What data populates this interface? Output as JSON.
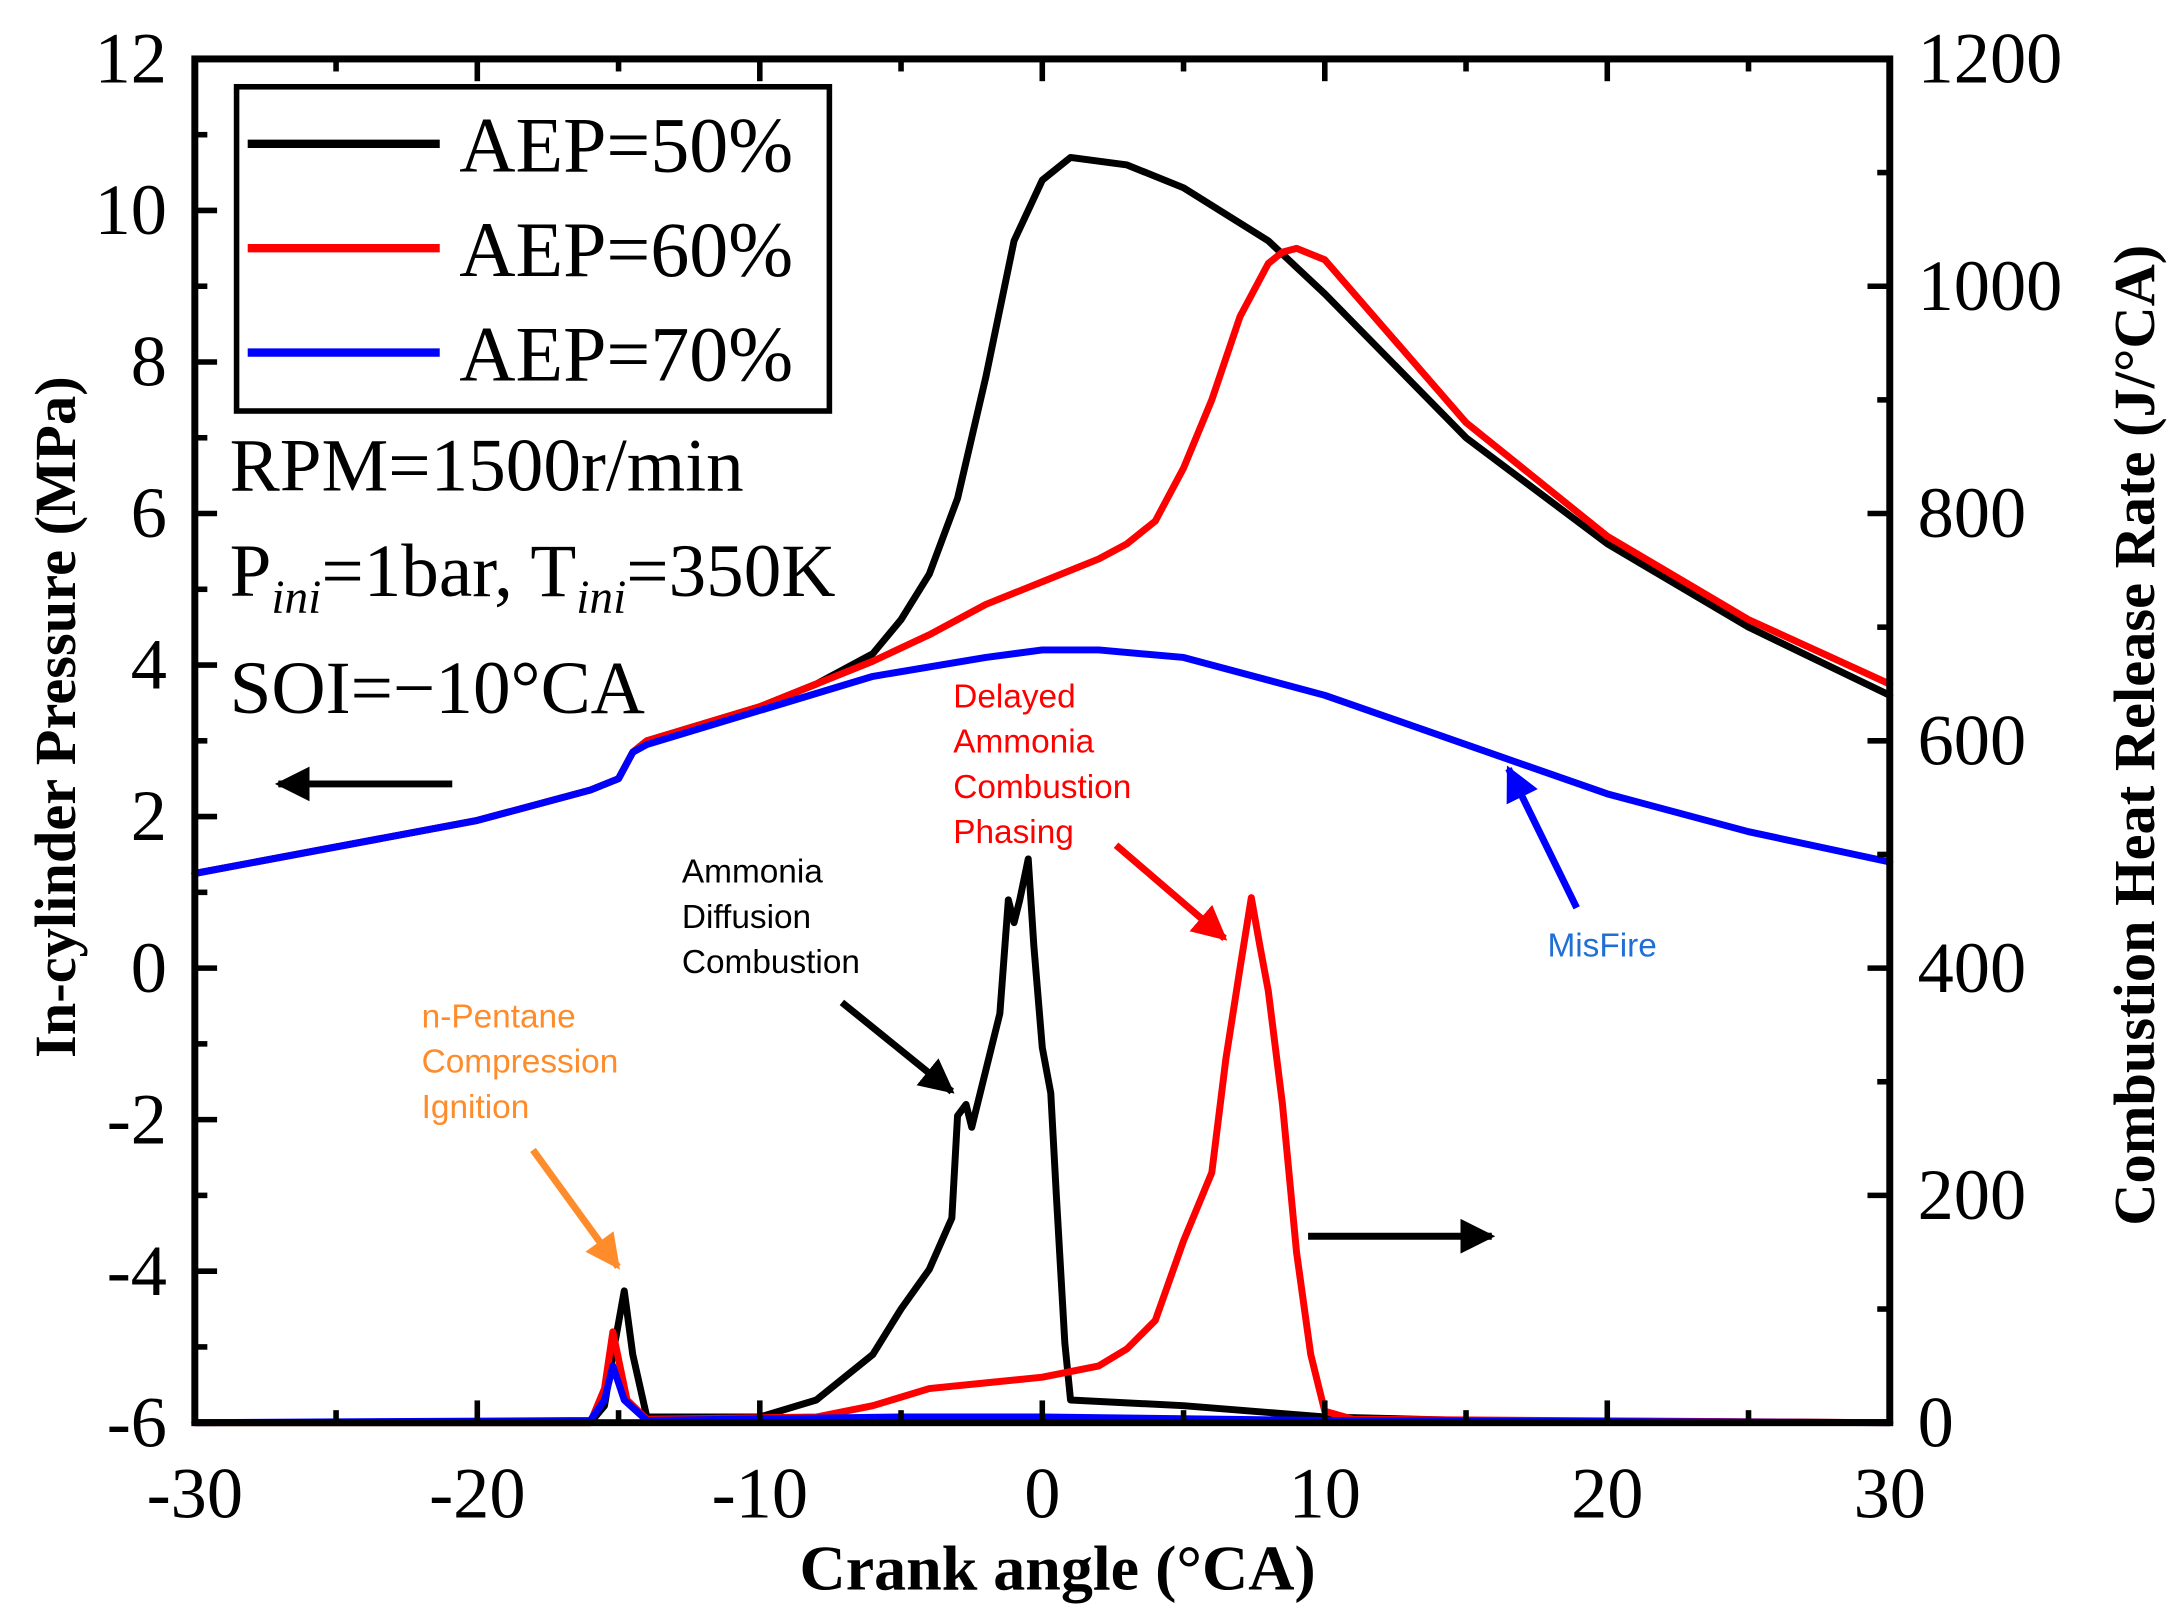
{
  "chart_data": {
    "type": "line",
    "xlabel": "Crank angle  (°CA)",
    "ylabel": "In-cylinder Pressure (MPa)",
    "y2label": "Combustion Heat Release Rate (J/°CA)",
    "xlim": [
      -30,
      30
    ],
    "ylim": [
      -6,
      12
    ],
    "y2lim": [
      0,
      1200
    ],
    "xticks": [
      "-30",
      "-20",
      "-10",
      "0",
      "10",
      "20",
      "30"
    ],
    "yticks": [
      "-6",
      "-4",
      "-2",
      "0",
      "2",
      "4",
      "6",
      "8",
      "10",
      "12"
    ],
    "y2ticks": [
      "0",
      "200",
      "400",
      "600",
      "800",
      "1000",
      "1200"
    ],
    "grid": false,
    "legend_position": "top-left",
    "legend": [
      "AEP=50%",
      "AEP=60%",
      "AEP=70%"
    ],
    "colors": {
      "AEP=50%": "#000000",
      "AEP=60%": "#ff0000",
      "AEP=70%": "#0000ff"
    },
    "series": [
      {
        "name": "AEP=50%",
        "axis": "left",
        "quantity": "pressure",
        "x": [
          -30,
          -20,
          -16,
          -15,
          -14.5,
          -14,
          -10,
          -8,
          -6,
          -5,
          -4,
          -3,
          -2,
          -1,
          0,
          1,
          3,
          5,
          8,
          10,
          15,
          20,
          25,
          30
        ],
        "y": [
          1.25,
          1.95,
          2.35,
          2.5,
          2.85,
          3.0,
          3.45,
          3.75,
          4.15,
          4.6,
          5.2,
          6.2,
          7.8,
          9.6,
          10.4,
          10.7,
          10.6,
          10.3,
          9.6,
          8.9,
          7.0,
          5.6,
          4.5,
          3.6
        ]
      },
      {
        "name": "AEP=60%",
        "axis": "left",
        "quantity": "pressure",
        "x": [
          -30,
          -20,
          -16,
          -15,
          -14.5,
          -14,
          -10,
          -8,
          -6,
          -4,
          -2,
          0,
          2,
          3,
          4,
          5,
          6,
          7,
          8,
          8.5,
          9,
          10,
          15,
          20,
          25,
          30
        ],
        "y": [
          1.25,
          1.95,
          2.35,
          2.5,
          2.85,
          3.0,
          3.45,
          3.75,
          4.05,
          4.4,
          4.8,
          5.1,
          5.4,
          5.6,
          5.9,
          6.6,
          7.5,
          8.6,
          9.3,
          9.45,
          9.5,
          9.35,
          7.2,
          5.7,
          4.6,
          3.75
        ]
      },
      {
        "name": "AEP=70%",
        "axis": "left",
        "quantity": "pressure",
        "x": [
          -30,
          -20,
          -16,
          -15,
          -14.5,
          -14,
          -10,
          -6,
          -2,
          0,
          2,
          5,
          10,
          15,
          20,
          25,
          30
        ],
        "y": [
          1.25,
          1.95,
          2.35,
          2.5,
          2.85,
          2.95,
          3.4,
          3.85,
          4.1,
          4.2,
          4.2,
          4.1,
          3.6,
          2.95,
          2.3,
          1.8,
          1.4
        ]
      },
      {
        "name": "AEP=50%",
        "axis": "right",
        "quantity": "heat_release_rate",
        "x": [
          -30,
          -16,
          -15.5,
          -15.2,
          -14.8,
          -14.5,
          -14,
          -10,
          -8,
          -6,
          -5,
          -4,
          -3.2,
          -3,
          -2.7,
          -2.5,
          -2,
          -1.5,
          -1.2,
          -1,
          -0.8,
          -0.5,
          -0.3,
          0,
          0.3,
          0.5,
          0.8,
          1,
          5,
          10,
          15,
          30
        ],
        "y": [
          0,
          0,
          15,
          60,
          116,
          60,
          5,
          5,
          20,
          60,
          100,
          135,
          180,
          270,
          280,
          260,
          310,
          360,
          460,
          440,
          460,
          496,
          420,
          330,
          290,
          200,
          70,
          20,
          15,
          5,
          2,
          0
        ]
      },
      {
        "name": "AEP=60%",
        "axis": "right",
        "quantity": "heat_release_rate",
        "x": [
          -30,
          -16,
          -15.5,
          -15.2,
          -14.7,
          -14,
          -8,
          -6,
          -4,
          -2,
          0,
          2,
          3,
          4,
          5,
          6,
          6.5,
          7,
          7.4,
          7.7,
          8,
          8.5,
          9,
          9.5,
          10,
          11,
          30
        ],
        "y": [
          0,
          0,
          30,
          80,
          20,
          3,
          5,
          15,
          30,
          35,
          40,
          50,
          65,
          90,
          160,
          220,
          320,
          400,
          462,
          420,
          380,
          280,
          150,
          60,
          10,
          3,
          0
        ]
      },
      {
        "name": "AEP=70%",
        "axis": "right",
        "quantity": "heat_release_rate",
        "x": [
          -30,
          -16,
          -15.5,
          -15.2,
          -14.8,
          -14,
          -5,
          0,
          10,
          30
        ],
        "y": [
          0,
          2,
          20,
          50,
          20,
          2,
          5,
          5,
          2,
          0
        ]
      }
    ],
    "conditions": {
      "rpm": "RPM=1500r/min",
      "pini_prefix": "P",
      "pini_sub": "ini",
      "pini_value": "=1bar, T",
      "tini_sub": "ini",
      "tini_value": "=350K",
      "soi": "SOI=−10°CA"
    },
    "annotations": [
      {
        "id": "delayed",
        "lines": [
          "Delayed",
          "Ammonia",
          "Combustion",
          "Phasing"
        ],
        "color": "#ff0000"
      },
      {
        "id": "diffusion",
        "lines": [
          "Ammonia",
          "Diffusion",
          "Combustion"
        ],
        "color": "#000000"
      },
      {
        "id": "pentane",
        "lines": [
          "n-Pentane",
          "Compression",
          "Ignition"
        ],
        "color": "#ff8c2a"
      },
      {
        "id": "misfire",
        "lines": [
          "MisFire"
        ],
        "color": "#1f6fd6"
      }
    ]
  }
}
